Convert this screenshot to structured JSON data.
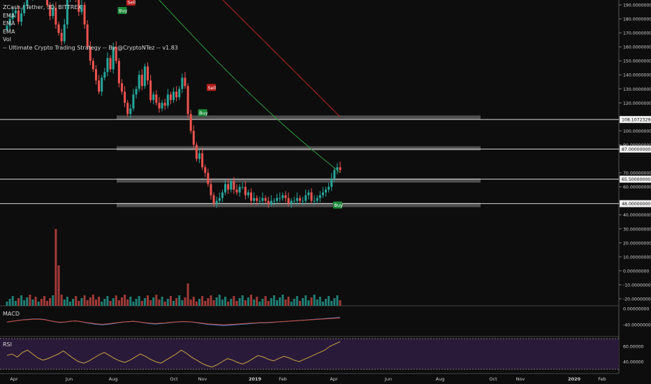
{
  "legend": {
    "symbol_line": "ZCash / Tether, 3D, BITTREX",
    "ema1": "EMA",
    "ema2": "EMA",
    "ema3": "EMA",
    "vol": "Vol",
    "strategy": "-- Ultimate Crypto Trading Strategy -- By @CryptoNTez -- v1.83"
  },
  "panes": {
    "macd": "MACD",
    "rsi": "RSI"
  },
  "colors": {
    "background": "#0d0d0d",
    "up": "#26a69a",
    "down": "#ef5350",
    "buy": "#1b8a3a",
    "sell": "#b71c1c",
    "ema_green": "#2e9e3a",
    "ema_red": "#b52a22",
    "zone": "#5a5a5a",
    "level_line": "#d8d8d8",
    "rsi_band": "#2a1a3a",
    "rsi_line": "#c8a640",
    "macd_line": "#3e8ee0",
    "signal_line": "#d04a3a"
  },
  "chart_data": {
    "type": "candlestick",
    "title": "ZCash / Tether, 3D, BITTREX",
    "x_tick_labels": [
      "Apr",
      "Jun",
      "Aug",
      "Oct",
      "Nov",
      "2019",
      "Feb",
      "Apr",
      "Jun",
      "Aug",
      "Oct",
      "Nov",
      "2020",
      "Feb"
    ],
    "price_axis": {
      "range": [
        -25,
        195
      ],
      "tick_labels": [
        "190.00000000",
        "180.00000000",
        "170.00000000",
        "160.00000000",
        "150.00000000",
        "140.00000000",
        "130.00000000",
        "120.00000000",
        "100.00000000",
        "90.00000000",
        "70.00000000",
        "60.00000000",
        "40.00000000",
        "30.00000000",
        "20.00000000",
        "10.00000000",
        "0.00000000",
        "-10.00000000",
        "-20.00000000"
      ],
      "tick_values": [
        190,
        180,
        170,
        160,
        150,
        140,
        130,
        120,
        100,
        90,
        70,
        60,
        40,
        30,
        20,
        10,
        0,
        -10,
        -20
      ]
    },
    "levels": [
      {
        "value": 108.10723298,
        "label": "108.10723298"
      },
      {
        "value": 87.0,
        "label": "87.00000000"
      },
      {
        "value": 65.5,
        "label": "65.50000000"
      },
      {
        "value": 48.0,
        "label": "48.00000000"
      }
    ],
    "zones": [
      109.5,
      87.5,
      64.5,
      47.0
    ],
    "closes": [
      175,
      180,
      184,
      186,
      178,
      184,
      190,
      200,
      196,
      205,
      198,
      214,
      206,
      201,
      190,
      182,
      188,
      176,
      170,
      164,
      176,
      194,
      198,
      200,
      194,
      185,
      190,
      176,
      160,
      150,
      144,
      136,
      128,
      138,
      142,
      152,
      144,
      160,
      150,
      134,
      128,
      120,
      112,
      116,
      126,
      130,
      140,
      132,
      146,
      136,
      122,
      126,
      120,
      116,
      120,
      118,
      126,
      122,
      128,
      124,
      130,
      138,
      132,
      112,
      100,
      90,
      80,
      84,
      74,
      70,
      62,
      54,
      48,
      50,
      52,
      56,
      62,
      58,
      64,
      58,
      56,
      60,
      60,
      54,
      56,
      50,
      52,
      50,
      50,
      52,
      50,
      48,
      50,
      50,
      52,
      52,
      54,
      52,
      48,
      50,
      50,
      52,
      50,
      50,
      54,
      56,
      50,
      50,
      52,
      54,
      56,
      58,
      60,
      66,
      72,
      74,
      72
    ],
    "volume": {
      "axis_tick_labels": [
        "0.00000000",
        "-40.00000000"
      ],
      "macd_line": [
        -6,
        -4,
        -2,
        0,
        1,
        2,
        2,
        1,
        -2,
        -5,
        -7,
        -6,
        -4,
        -3,
        -5,
        -8,
        -10,
        -12,
        -13,
        -12,
        -10,
        -8,
        -6,
        -5,
        -4,
        -6,
        -8,
        -10,
        -11,
        -10,
        -9,
        -7,
        -6,
        -5,
        -5,
        -6,
        -8,
        -10,
        -12,
        -13,
        -14,
        -15,
        -14,
        -13,
        -12,
        -11,
        -10,
        -9,
        -8,
        -8,
        -7,
        -6,
        -5,
        -4,
        -3,
        -2,
        -1,
        0,
        1,
        2,
        3,
        4,
        5,
        6
      ]
    },
    "rsi": {
      "axis_tick_labels": [
        "60.00000",
        "40.00000"
      ],
      "tick_values": [
        60,
        40
      ],
      "values": [
        48,
        50,
        46,
        52,
        55,
        50,
        45,
        42,
        44,
        47,
        50,
        54,
        49,
        44,
        40,
        38,
        41,
        45,
        49,
        52,
        48,
        44,
        41,
        39,
        42,
        46,
        50,
        47,
        43,
        40,
        38,
        42,
        46,
        50,
        55,
        51,
        46,
        42,
        38,
        35,
        33,
        36,
        40,
        44,
        42,
        39,
        37,
        40,
        44,
        48,
        46,
        43,
        41,
        44,
        47,
        45,
        42,
        40,
        43,
        46,
        49,
        52,
        55,
        60,
        63,
        66
      ]
    },
    "signals": [
      {
        "label": "Buy",
        "type": "buy"
      },
      {
        "label": "Sell",
        "type": "sell"
      },
      {
        "label": "Sell",
        "type": "sell"
      },
      {
        "label": "Buy",
        "type": "buy"
      },
      {
        "label": "Buy",
        "type": "buy"
      }
    ]
  }
}
